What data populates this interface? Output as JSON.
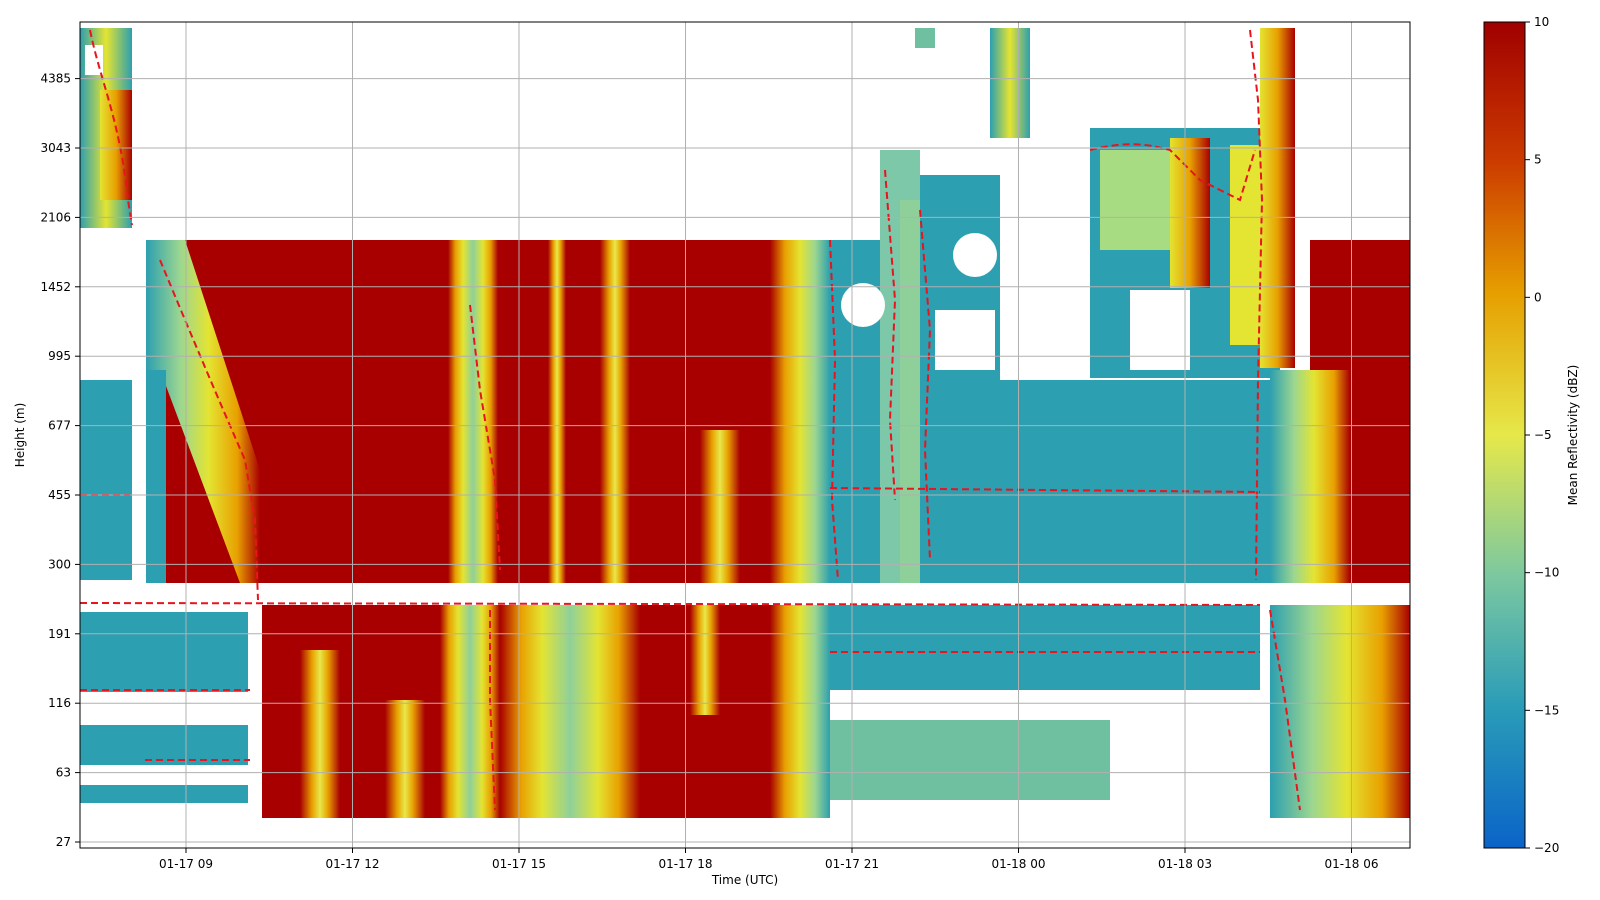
{
  "chart_data": {
    "type": "heatmap",
    "title": "",
    "xlabel": "Time (UTC)",
    "ylabel": "Height (m)",
    "colorbar_label": "Mean Reflectivity (dBZ)",
    "colormap": "jet-like (blue-green-yellow-red)",
    "x_tick_labels": [
      "01-17 09",
      "01-17 12",
      "01-17 15",
      "01-17 18",
      "01-17 21",
      "01-18 00",
      "01-18 03",
      "01-18 06"
    ],
    "y_scale": "log",
    "y_tick_labels": [
      "27",
      "63",
      "116",
      "191",
      "300",
      "455",
      "677",
      "995",
      "1452",
      "2106",
      "3043",
      "4385"
    ],
    "colorbar_range": [
      -20,
      10
    ],
    "colorbar_ticks": [
      "10",
      "5",
      "0",
      "−5",
      "−10",
      "−15",
      "−20"
    ],
    "grid": true,
    "contour_style": "red dashed",
    "colors": {
      "high": "#a80000",
      "mid_red": "#d22a00",
      "orange": "#e8a200",
      "yellow": "#e4e432",
      "light_green": "#a8dc82",
      "teal": "#2c9fb0",
      "blue": "#1a7fd0",
      "contour": "#e8141e"
    }
  }
}
